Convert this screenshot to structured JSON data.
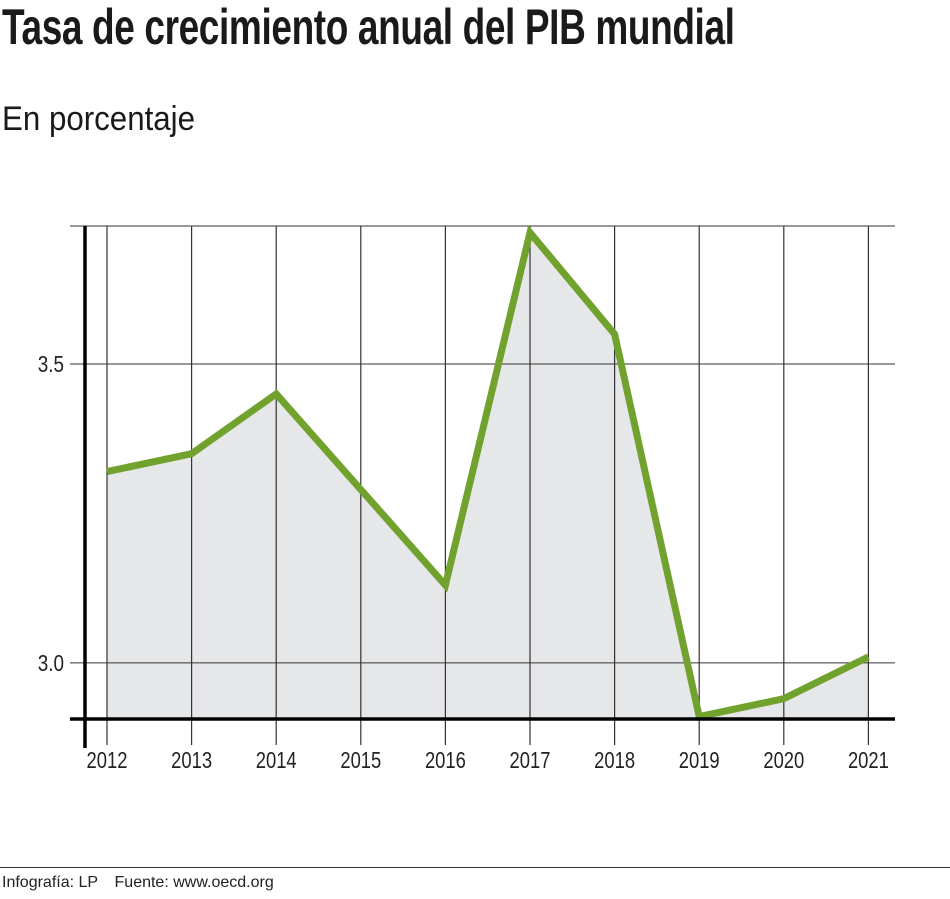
{
  "chart_data": {
    "type": "area",
    "title": "Tasa de crecimiento anual del PIB mundial",
    "subtitle": "En porcentaje",
    "xlabel": "",
    "ylabel": "",
    "categories": [
      "2012",
      "2013",
      "2014",
      "2015",
      "2016",
      "2017",
      "2018",
      "2019",
      "2020",
      "2021"
    ],
    "values": [
      3.32,
      3.35,
      3.45,
      3.29,
      3.13,
      3.72,
      3.55,
      2.91,
      2.94,
      3.01
    ],
    "ylim": [
      2.906,
      3.731
    ],
    "yticks": [
      3.0,
      3.5
    ],
    "ytick_labels": [
      "3.0",
      "3.5"
    ],
    "grid": true,
    "colors": {
      "line": "#72a22e",
      "fill": "#e6e7e9",
      "grid": "#333333",
      "axis": "#000000"
    }
  },
  "footer": {
    "credit": "Infografía: LP",
    "source": "Fuente: www.oecd.org"
  }
}
